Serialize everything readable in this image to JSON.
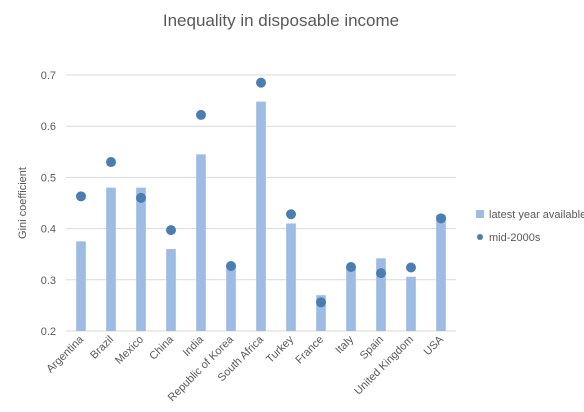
{
  "chart_data": {
    "type": "bar",
    "title": "Inequality in disposable income",
    "ylabel": "Gini coefficient",
    "xlabel": "",
    "ylim": [
      0.2,
      0.7
    ],
    "yticks": [
      "0.2",
      "0.3",
      "0.4",
      "0.5",
      "0.6",
      "0.7"
    ],
    "grid": true,
    "legend_position": "right",
    "categories": [
      "Argentina",
      "Brazil",
      "Mexico",
      "China",
      "India",
      "Republic of Korea",
      "South Africa",
      "Turkey",
      "France",
      "Italy",
      "Spain",
      "United Kingdom",
      "USA"
    ],
    "series": [
      {
        "name": "latest year available",
        "kind": "bar",
        "color": "#9dbbe3",
        "values": [
          0.375,
          0.48,
          0.48,
          0.36,
          0.545,
          0.325,
          0.648,
          0.41,
          0.27,
          0.325,
          0.342,
          0.306,
          0.427
        ]
      },
      {
        "name": "mid-2000s",
        "kind": "marker",
        "color": "#4a7eb0",
        "values": [
          0.463,
          0.53,
          0.46,
          0.397,
          0.622,
          0.327,
          0.685,
          0.428,
          0.256,
          0.325,
          0.313,
          0.324,
          0.42
        ]
      }
    ]
  }
}
